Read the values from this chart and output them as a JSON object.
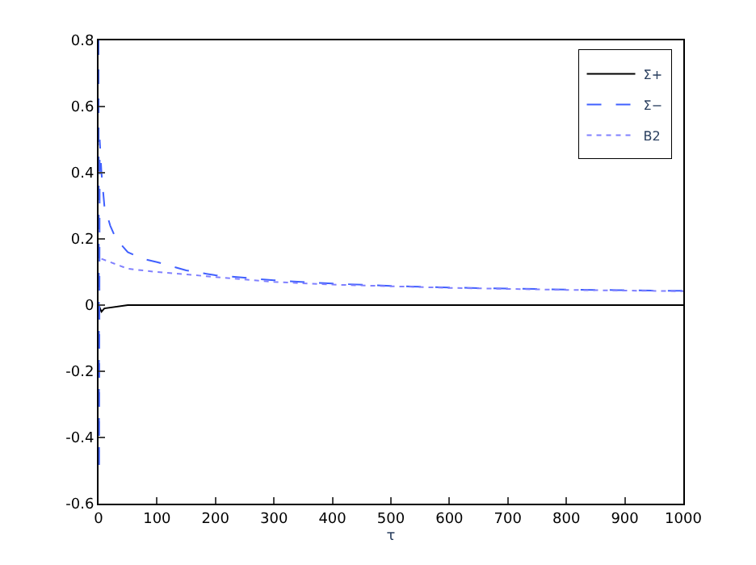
{
  "chart_data": {
    "type": "line",
    "xlabel": "τ",
    "xlim": [
      0,
      1000
    ],
    "xticks": [
      0,
      100,
      200,
      300,
      400,
      500,
      600,
      700,
      800,
      900,
      1000
    ],
    "ylim": [
      -0.6,
      0.8
    ],
    "yticks": [
      -0.6,
      -0.4,
      -0.2,
      0,
      0.2,
      0.4,
      0.6,
      0.8
    ],
    "legend": "top right",
    "series": [
      {
        "name": "Σ+",
        "color": "#000000",
        "line_style": "solid",
        "x": [
          0,
          5,
          10,
          50,
          1000
        ],
        "values": [
          0,
          -0.02,
          -0.01,
          0,
          0
        ]
      },
      {
        "name": "Σ−",
        "color": "#4060ff",
        "line_style": "dashed",
        "x": [
          0,
          1,
          2,
          5,
          10,
          20,
          30,
          50,
          75,
          100,
          150,
          200,
          300,
          400,
          500,
          600,
          700,
          800,
          900,
          1000
        ],
        "values": [
          0.8,
          -0.5,
          0.5,
          0.4,
          0.3,
          0.24,
          0.2,
          0.16,
          0.14,
          0.13,
          0.105,
          0.09,
          0.075,
          0.065,
          0.058,
          0.053,
          0.05,
          0.047,
          0.045,
          0.043
        ]
      },
      {
        "name": "B2",
        "color": "#8080ff",
        "line_style": "dotted",
        "x": [
          5,
          20,
          50,
          100,
          200,
          300,
          400,
          500,
          600,
          700,
          800,
          900,
          1000
        ],
        "values": [
          0.14,
          0.13,
          0.11,
          0.1,
          0.085,
          0.07,
          0.062,
          0.057,
          0.052,
          0.049,
          0.046,
          0.044,
          0.042
        ]
      }
    ]
  }
}
